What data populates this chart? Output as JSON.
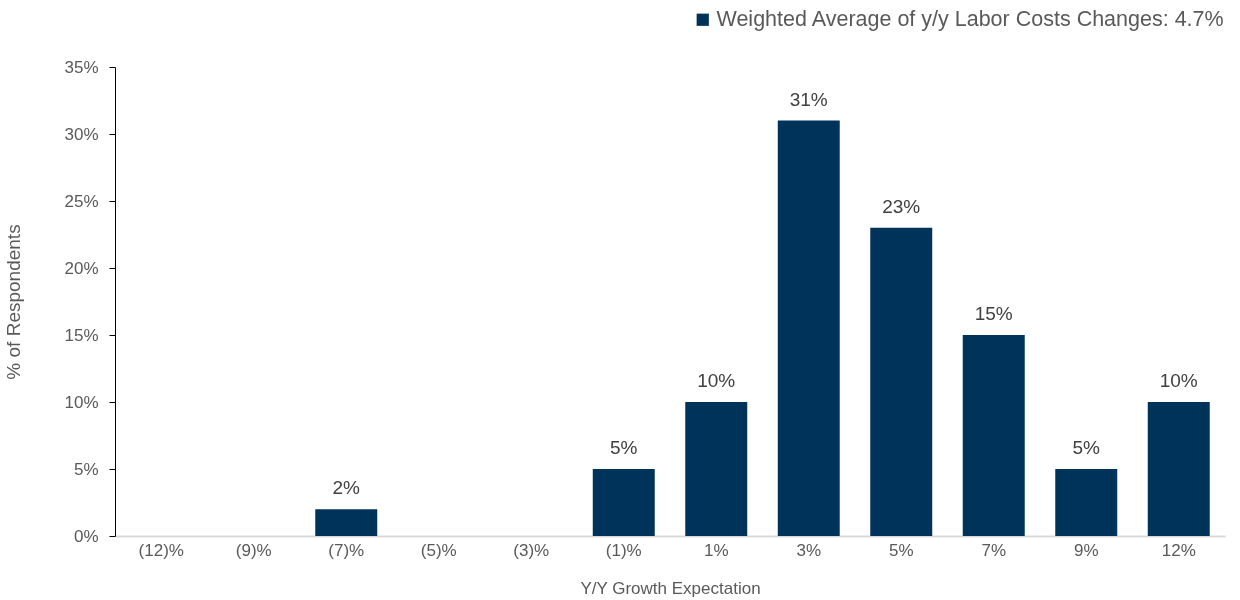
{
  "chart_data": {
    "type": "bar",
    "xlabel": "Y/Y Growth Expectation",
    "ylabel": "% of Respondents",
    "categories": [
      "(12)%",
      "(9)%",
      "(7)%",
      "(5)%",
      "(3)%",
      "(1)%",
      "1%",
      "3%",
      "5%",
      "7%",
      "9%",
      "12%"
    ],
    "series": [
      {
        "name": "Weighted Average of y/y Labor Costs Changes: 4.7%",
        "color": "#003359",
        "values": [
          0,
          0,
          2,
          0,
          0,
          5,
          10,
          31,
          23,
          15,
          5,
          10
        ],
        "value_labels": [
          null,
          null,
          "2%",
          null,
          null,
          "5%",
          "10%",
          "31%",
          "23%",
          "15%",
          "5%",
          "10%"
        ]
      }
    ],
    "ylim": [
      0,
      35
    ],
    "yticks": [
      {
        "value": 0,
        "label": "0%"
      },
      {
        "value": 5,
        "label": "5%"
      },
      {
        "value": 10,
        "label": "10%"
      },
      {
        "value": 15,
        "label": "15%"
      },
      {
        "value": 20,
        "label": "20%"
      },
      {
        "value": 25,
        "label": "25%"
      },
      {
        "value": 30,
        "label": "30%"
      },
      {
        "value": 35,
        "label": "35%"
      }
    ],
    "legend": "top right"
  }
}
